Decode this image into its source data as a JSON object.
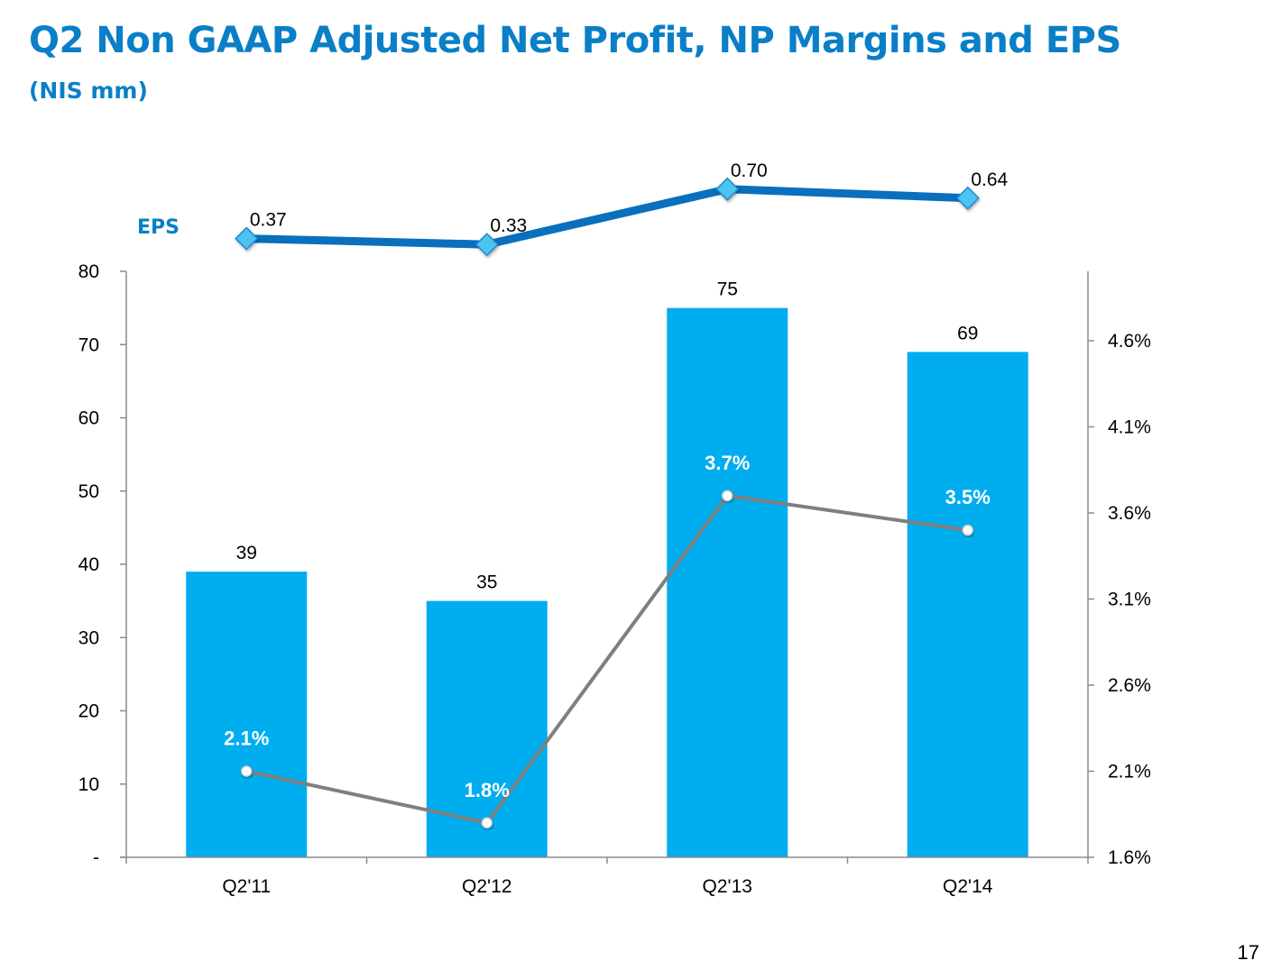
{
  "slide": {
    "title": "Q2 Non GAAP Adjusted Net Profit, NP Margins and EPS",
    "subtitle": "(NIS mm)",
    "eps_label": "EPS",
    "page_number": "17"
  },
  "colors": {
    "title": "#0a7fc7",
    "bars": "#00adef",
    "eps_line": "#0a6fbd",
    "eps_marker": "#4ec3f0",
    "margin_line": "#7f7f7f",
    "margin_label": "#ffffff",
    "axis": "#8c8c8c"
  },
  "chart_data": {
    "type": "bar",
    "categories": [
      "Q2'11",
      "Q2'12",
      "Q2'13",
      "Q2'14"
    ],
    "series": [
      {
        "type": "bar",
        "axis": "left",
        "values": [
          39,
          35,
          75,
          69
        ],
        "labels": [
          "39",
          "35",
          "75",
          "69"
        ]
      },
      {
        "type": "line",
        "axis": "right",
        "values": [
          2.1,
          1.8,
          3.7,
          3.5
        ],
        "labels": [
          "2.1%",
          "1.8%",
          "3.7%",
          "3.5%"
        ]
      },
      {
        "name": "EPS",
        "type": "line",
        "axis": "top",
        "values": [
          0.37,
          0.33,
          0.7,
          0.64
        ],
        "labels": [
          "0.37",
          "0.33",
          "0.70",
          "0.64"
        ]
      }
    ],
    "left_axis": {
      "ylim": [
        0,
        80
      ],
      "ticks": [
        0,
        10,
        20,
        30,
        40,
        50,
        60,
        70,
        80
      ],
      "tick_labels": [
        "-",
        "10",
        "20",
        "30",
        "40",
        "50",
        "60",
        "70",
        "80"
      ]
    },
    "right_axis": {
      "ticks": [
        1.6,
        2.1,
        2.6,
        3.1,
        3.6,
        4.1,
        4.6
      ],
      "tick_labels": [
        "1.6%",
        "2.1%",
        "2.6%",
        "3.1%",
        "3.6%",
        "4.1%",
        "4.6%"
      ]
    },
    "grid": false,
    "legend": "none"
  }
}
